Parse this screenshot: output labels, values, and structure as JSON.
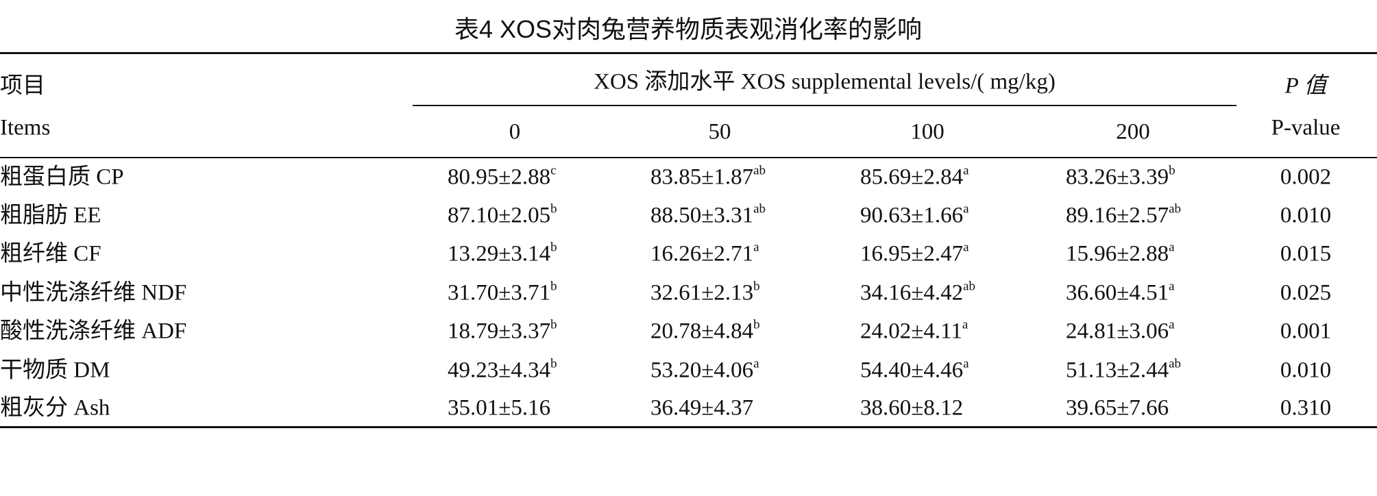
{
  "title": "表4 XOS对肉兔营养物质表观消化率的影响",
  "header": {
    "items_cn": "项目",
    "items_en": "Items",
    "group_label": "XOS 添加水平 XOS supplemental levels/( mg/kg)",
    "levels": [
      "0",
      "50",
      "100",
      "200"
    ],
    "p_cn": "P 值",
    "p_en": "P-value"
  },
  "rows": [
    {
      "item": "粗蛋白质 CP",
      "cells": [
        {
          "text": "80.95±2.88",
          "sup": "c"
        },
        {
          "text": "83.85±1.87",
          "sup": "ab"
        },
        {
          "text": "85.69±2.84",
          "sup": "a"
        },
        {
          "text": "83.26±3.39",
          "sup": "b"
        }
      ],
      "p": "0.002"
    },
    {
      "item": "粗脂肪 EE",
      "cells": [
        {
          "text": "87.10±2.05",
          "sup": "b"
        },
        {
          "text": "88.50±3.31",
          "sup": "ab"
        },
        {
          "text": "90.63±1.66",
          "sup": "a"
        },
        {
          "text": "89.16±2.57",
          "sup": "ab"
        }
      ],
      "p": "0.010"
    },
    {
      "item": "粗纤维 CF",
      "cells": [
        {
          "text": "13.29±3.14",
          "sup": "b"
        },
        {
          "text": "16.26±2.71",
          "sup": "a"
        },
        {
          "text": "16.95±2.47",
          "sup": "a"
        },
        {
          "text": "15.96±2.88",
          "sup": "a"
        }
      ],
      "p": "0.015"
    },
    {
      "item": "中性洗涤纤维 NDF",
      "cells": [
        {
          "text": "31.70±3.71",
          "sup": "b"
        },
        {
          "text": "32.61±2.13",
          "sup": "b"
        },
        {
          "text": "34.16±4.42",
          "sup": "ab"
        },
        {
          "text": "36.60±4.51",
          "sup": "a"
        }
      ],
      "p": "0.025"
    },
    {
      "item": "酸性洗涤纤维 ADF",
      "cells": [
        {
          "text": "18.79±3.37",
          "sup": "b"
        },
        {
          "text": "20.78±4.84",
          "sup": "b"
        },
        {
          "text": "24.02±4.11",
          "sup": "a"
        },
        {
          "text": "24.81±3.06",
          "sup": "a"
        }
      ],
      "p": "0.001"
    },
    {
      "item": "干物质 DM",
      "cells": [
        {
          "text": "49.23±4.34",
          "sup": "b"
        },
        {
          "text": "53.20±4.06",
          "sup": "a"
        },
        {
          "text": "54.40±4.46",
          "sup": "a"
        },
        {
          "text": "51.13±2.44",
          "sup": "ab"
        }
      ],
      "p": "0.010"
    },
    {
      "item": "粗灰分 Ash",
      "cells": [
        {
          "text": "35.01±5.16"
        },
        {
          "text": "36.49±4.37"
        },
        {
          "text": "38.60±8.12"
        },
        {
          "text": "39.65±7.66"
        }
      ],
      "p": "0.310"
    }
  ]
}
